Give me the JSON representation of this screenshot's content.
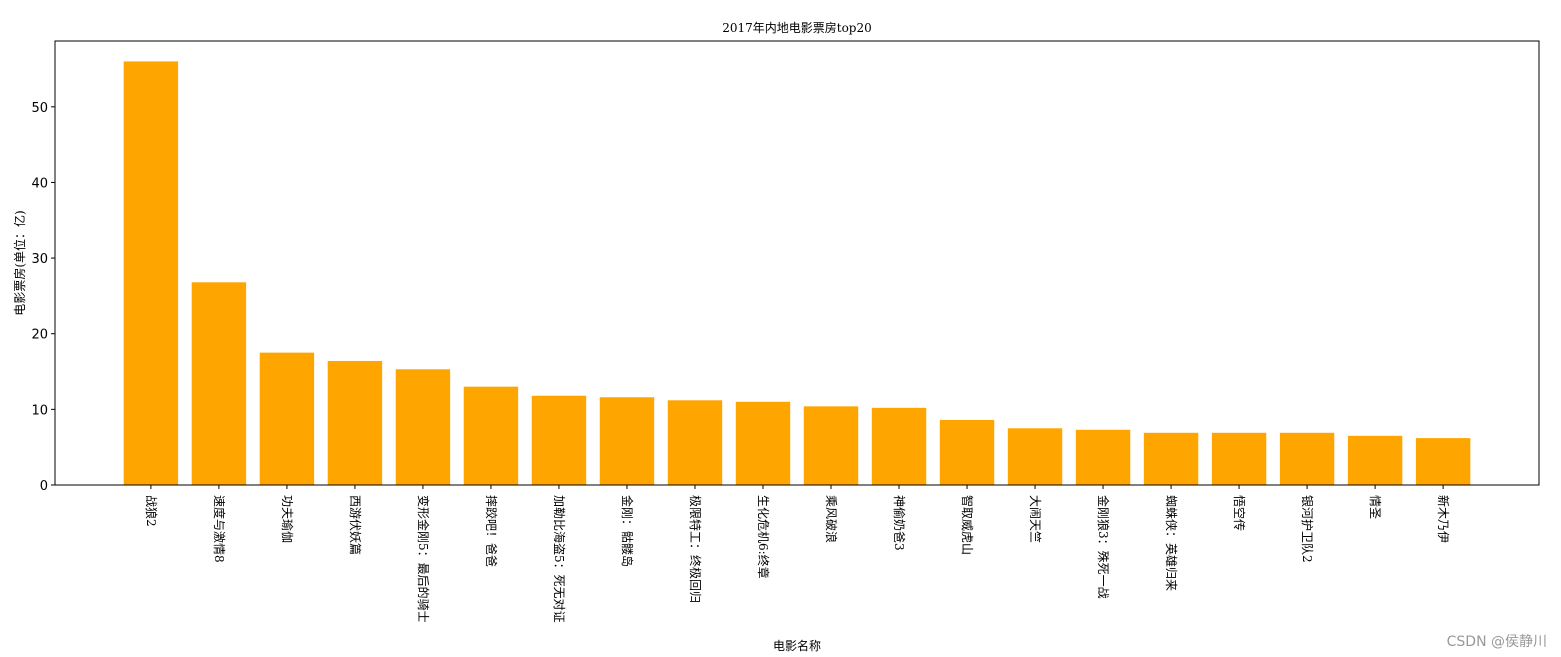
{
  "chart_data": {
    "type": "bar",
    "title": "2017年内地电影票房top20",
    "x_label": "电影名称",
    "y_label": "电影票房(单位：亿)",
    "categories": [
      "战狼2",
      "速度与激情8",
      "功夫瑜伽",
      "西游伏妖篇",
      "变形金刚5：最后的骑士",
      "摔跤吧！爸爸",
      "加勒比海盗5：死无对证",
      "金刚：骷髅岛",
      "极限特工：终极回归",
      "生化危机6:终章",
      "乘风破浪",
      "神偷奶爸3",
      "智取威虎山",
      "大闹天竺",
      "金刚狼3：殊死一战",
      "蜘蛛侠：英雄归来",
      "悟空传",
      "银河护卫队2",
      "情圣",
      "新木乃伊"
    ],
    "values": [
      56.0,
      26.8,
      17.5,
      16.4,
      15.3,
      13.0,
      11.8,
      11.6,
      11.2,
      11.0,
      10.4,
      10.2,
      8.6,
      7.5,
      7.3,
      6.9,
      6.9,
      6.9,
      6.5,
      6.2
    ],
    "color": "#ffa500",
    "ylim": [
      0,
      58.7
    ],
    "yticks": [
      0,
      10,
      20,
      30,
      40,
      50
    ]
  },
  "watermark": "CSDN @侯静川"
}
